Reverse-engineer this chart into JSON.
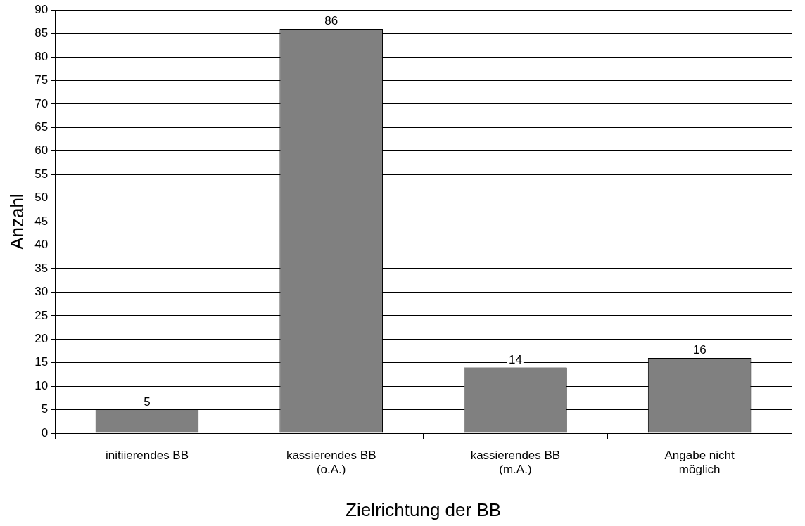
{
  "chart_data": {
    "type": "bar",
    "xlabel": "Zielrichtung der BB",
    "ylabel": "Anzahl",
    "categories": [
      "initiierendes BB",
      "kassierendes BB\n(o.A.)",
      "kassierendes BB\n(m.A.)",
      "Angabe nicht\nmöglich"
    ],
    "values": [
      5,
      86,
      14,
      16
    ],
    "color": "#808080",
    "ylim": [
      0,
      90
    ],
    "yticks": [
      0,
      5,
      10,
      15,
      20,
      25,
      30,
      35,
      40,
      45,
      50,
      55,
      60,
      65,
      70,
      75,
      80,
      85,
      90
    ],
    "grid": "y",
    "data_labels": true,
    "legend": false
  }
}
